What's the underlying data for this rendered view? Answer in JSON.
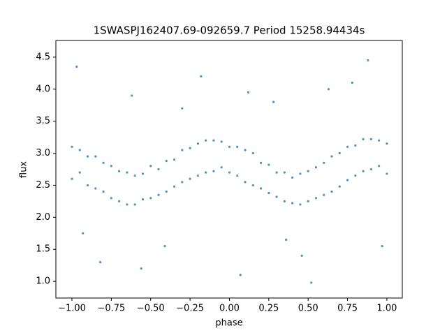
{
  "chart_data": {
    "type": "scatter",
    "title": "1SWASPJ162407.69-092659.7 Period 15258.94434s",
    "xlabel": "phase",
    "ylabel": "flux",
    "color": "#1f77b4",
    "xlim": [
      -1.102,
      1.098
    ],
    "ylim": [
      0.74,
      4.76
    ],
    "xticks": [
      {
        "value": -1,
        "label": "−1.00"
      },
      {
        "value": -0.75,
        "label": "−0.75"
      },
      {
        "value": -0.5,
        "label": "−0.50"
      },
      {
        "value": -0.25,
        "label": "−0.25"
      },
      {
        "value": 0,
        "label": "0.00"
      },
      {
        "value": 0.25,
        "label": "0.25"
      },
      {
        "value": 0.5,
        "label": "0.50"
      },
      {
        "value": 0.75,
        "label": "0.75"
      },
      {
        "value": 1,
        "label": "1.00"
      }
    ],
    "yticks": [
      {
        "value": 1,
        "label": "1.0"
      },
      1.5,
      {
        "value": 2,
        "label": "2.0"
      },
      2.5,
      {
        "value": 3,
        "label": "3.0"
      },
      3.5,
      {
        "value": 4,
        "label": "4.0"
      },
      4.5
    ],
    "x": [
      -1,
      -0.95,
      -0.9,
      -0.85,
      -0.8,
      -0.75,
      -0.7,
      -0.65,
      -0.6,
      -0.55,
      -0.5,
      -0.45,
      -0.4,
      -0.35,
      -0.3,
      -0.25,
      -0.2,
      -0.15,
      -0.1,
      -0.05,
      0,
      0.05,
      0.1,
      0.15,
      0.2,
      0.25,
      0.3,
      0.35,
      0.4,
      0.45,
      0.5,
      0.55,
      0.6,
      0.65,
      0.7,
      0.75,
      0.8,
      0.85,
      0.9,
      0.95,
      1,
      -1,
      -0.95,
      -0.9,
      -0.85,
      -0.8,
      -0.75,
      -0.7,
      -0.65,
      -0.6,
      -0.55,
      -0.5,
      -0.45,
      -0.4,
      -0.35,
      -0.3,
      -0.25,
      -0.2,
      -0.15,
      -0.1,
      -0.05,
      0,
      0.05,
      0.1,
      0.15,
      0.2,
      0.25,
      0.3,
      0.35,
      0.4,
      0.45,
      0.5,
      0.55,
      0.6,
      0.65,
      0.7,
      0.75,
      0.8,
      0.85,
      0.9,
      0.95,
      1,
      -0.97,
      -0.82,
      -0.62,
      -0.41,
      -0.18,
      0.07,
      0.28,
      0.46,
      0.63,
      0.88,
      -0.93,
      -0.56,
      0.12,
      0.52,
      0.97,
      -0.3,
      0.36,
      0.78
    ],
    "values": [
      3.1,
      2.7,
      2.95,
      2.45,
      2.85,
      2.3,
      2.72,
      2.2,
      2.65,
      2.28,
      2.8,
      2.35,
      2.88,
      2.48,
      3.05,
      2.6,
      3.15,
      2.7,
      3.2,
      2.78,
      3.1,
      2.65,
      3.05,
      2.5,
      2.85,
      2.38,
      2.7,
      2.25,
      2.62,
      2.2,
      2.72,
      2.3,
      2.85,
      2.4,
      3,
      2.58,
      3.12,
      2.72,
      3.22,
      2.8,
      3.15,
      2.6,
      3.05,
      2.5,
      2.95,
      2.4,
      2.8,
      2.25,
      2.7,
      2.2,
      2.68,
      2.3,
      2.75,
      2.4,
      2.9,
      2.55,
      3.08,
      2.65,
      3.2,
      2.72,
      3.18,
      2.7,
      3.1,
      2.55,
      3,
      2.45,
      2.82,
      2.32,
      2.7,
      2.22,
      2.68,
      2.25,
      2.78,
      2.35,
      2.95,
      2.48,
      3.1,
      2.65,
      3.22,
      2.75,
      3.2,
      2.68,
      4.35,
      1.3,
      3.9,
      1.55,
      4.2,
      1.1,
      3.8,
      1.4,
      4,
      4.45,
      1.75,
      1.2,
      3.95,
      0.98,
      1.55,
      3.7,
      1.65,
      4.1
    ]
  }
}
